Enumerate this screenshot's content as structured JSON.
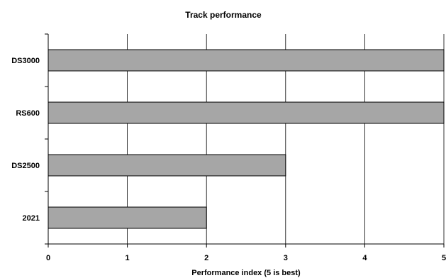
{
  "chart_data": {
    "type": "bar",
    "orientation": "horizontal",
    "title": "Track performance",
    "xlabel": "Performance index (5 is best)",
    "ylabel": "",
    "categories": [
      "DS3000",
      "RS600",
      "DS2500",
      "2021"
    ],
    "values": [
      5,
      5,
      3,
      2
    ],
    "xlim": [
      0,
      5
    ],
    "x_ticks": [
      "0",
      "1",
      "2",
      "3",
      "4",
      "5"
    ],
    "grid": "vertical",
    "bar_color": "#a6a6a6",
    "bar_edge_color": "#000000",
    "gridline_color": "#000000"
  }
}
